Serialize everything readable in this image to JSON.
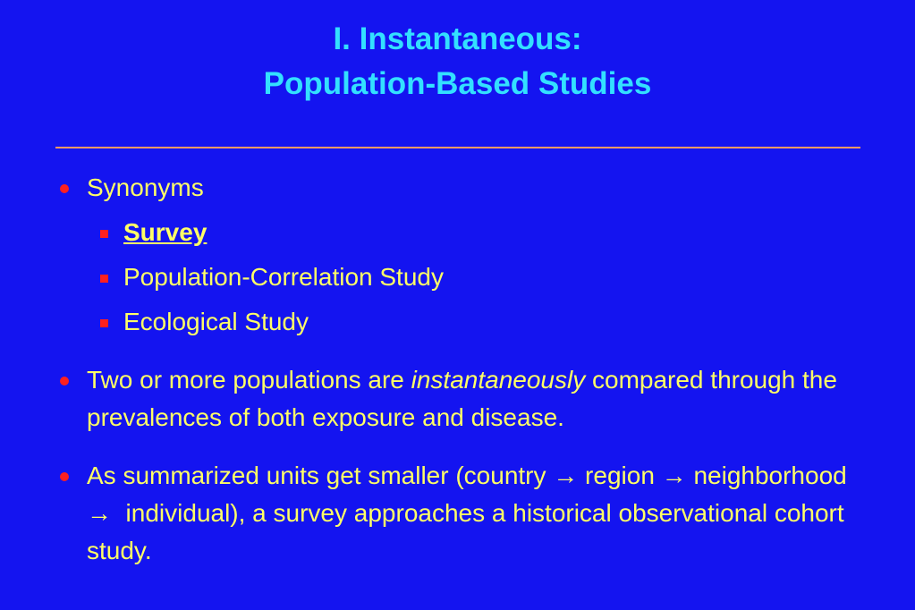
{
  "title": {
    "line1": "I. Instantaneous:",
    "line2": "Population-Based Studies"
  },
  "bullets": [
    {
      "text": "Synonyms",
      "subitems": [
        "Survey",
        "Population-Correlation Study",
        "Ecological Study"
      ]
    },
    {
      "segments": [
        "Two or more populations are ",
        "instantaneously",
        " compared through the prevalences of both exposure and disease."
      ]
    },
    {
      "segments": [
        "As summarized units get smaller (country → region → neighborhood →  individual), a survey approaches a historical observational cohort study."
      ]
    }
  ]
}
